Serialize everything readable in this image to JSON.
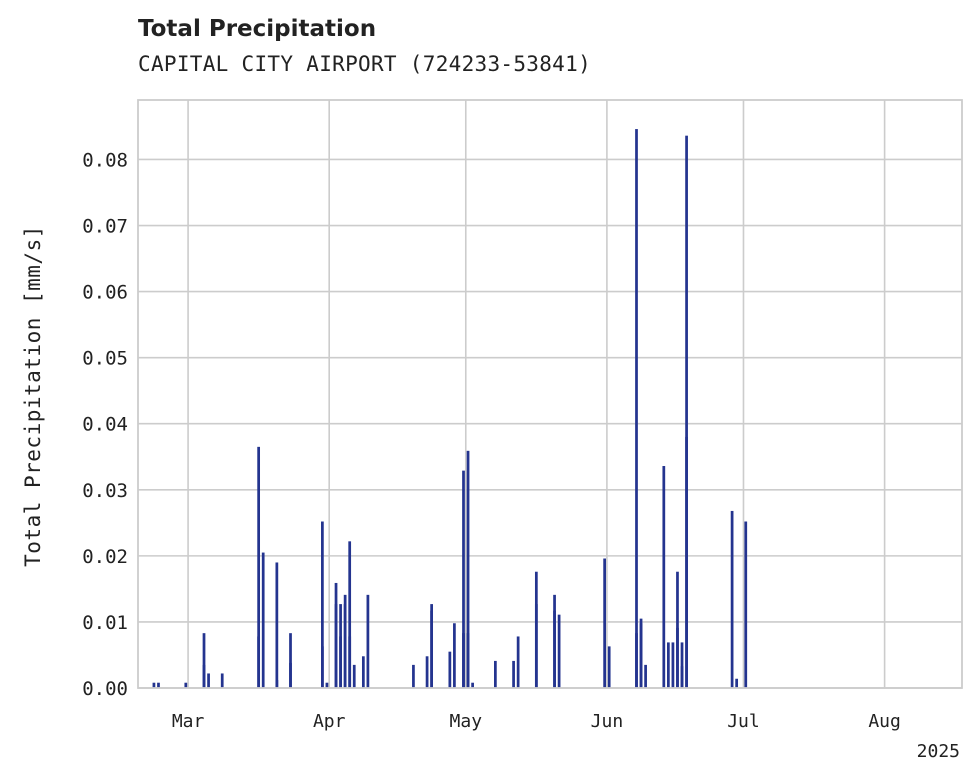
{
  "chart_data": {
    "type": "bar",
    "title": "Total Precipitation",
    "subtitle": "CAPITAL CITY AIRPORT (724233-53841)",
    "ylabel": "Total Precipitation [mm/s]",
    "xlabel": "",
    "x_axis_year": "2025",
    "x_ticks": [
      "2025-03-01",
      "2025-04-01",
      "2025-05-01",
      "2025-06-01",
      "2025-07-01",
      "2025-08-01"
    ],
    "x_tick_labels": [
      "Mar",
      "Apr",
      "May",
      "Jun",
      "Jul",
      "Aug"
    ],
    "xlim": [
      "2025-02-18",
      "2025-08-18"
    ],
    "ylim": [
      0,
      0.089
    ],
    "y_ticks": [
      0.0,
      0.01,
      0.02,
      0.03,
      0.04,
      0.05,
      0.06,
      0.07,
      0.08
    ],
    "y_tick_labels": [
      "0.00",
      "0.01",
      "0.02",
      "0.03",
      "0.04",
      "0.05",
      "0.06",
      "0.07",
      "0.08"
    ],
    "grid": true,
    "bar_color": "#24348f",
    "series": [
      {
        "x": [
          "2025-02-21",
          "2025-02-22",
          "2025-02-28",
          "2025-03-04",
          "2025-03-04",
          "2025-03-05",
          "2025-03-08",
          "2025-03-16",
          "2025-03-16",
          "2025-03-17",
          "2025-03-20",
          "2025-03-20",
          "2025-03-23",
          "2025-03-23",
          "2025-03-24",
          "2025-03-30",
          "2025-03-30",
          "2025-03-31",
          "2025-04-02",
          "2025-04-02",
          "2025-04-03",
          "2025-04-03",
          "2025-04-04",
          "2025-04-04",
          "2025-04-05",
          "2025-04-05",
          "2025-04-06",
          "2025-04-08",
          "2025-04-09",
          "2025-04-19",
          "2025-04-22",
          "2025-04-23",
          "2025-04-23",
          "2025-04-27",
          "2025-04-28",
          "2025-04-30",
          "2025-04-30",
          "2025-05-01",
          "2025-05-01",
          "2025-05-02",
          "2025-05-07",
          "2025-05-11",
          "2025-05-12",
          "2025-05-16",
          "2025-05-16",
          "2025-05-20",
          "2025-05-20",
          "2025-05-21",
          "2025-05-31",
          "2025-06-01",
          "2025-06-07",
          "2025-06-07",
          "2025-06-08",
          "2025-06-08",
          "2025-06-09",
          "2025-06-10",
          "2025-06-13",
          "2025-06-14",
          "2025-06-15",
          "2025-06-16",
          "2025-06-16",
          "2025-06-17",
          "2025-06-17",
          "2025-06-18",
          "2025-06-18",
          "2025-06-19",
          "2025-06-28",
          "2025-06-29",
          "2025-07-01"
        ],
        "values": [
          0.0008,
          0.0008,
          0.0008,
          0.0035,
          0.0083,
          0.0022,
          0.0022,
          0.0078,
          0.0365,
          0.0205,
          0.019,
          0.0012,
          0.0038,
          0.0083,
          0.0,
          0.0063,
          0.0252,
          0.0008,
          0.0127,
          0.0159,
          0.0127,
          0.0078,
          0.0127,
          0.0141,
          0.0222,
          0.0078,
          0.0035,
          0.0048,
          0.0141,
          0.0035,
          0.0048,
          0.0127,
          0.0117,
          0.0055,
          0.0098,
          0.0329,
          0.0083,
          0.0359,
          0.0083,
          0.0008,
          0.0041,
          0.0041,
          0.0078,
          0.0127,
          0.0176,
          0.0141,
          0.0117,
          0.0111,
          0.0196,
          0.0063,
          0.0083,
          0.0846,
          0.0098,
          0.0105,
          0.0035,
          0.0,
          0.0336,
          0.0069,
          0.0069,
          0.0091,
          0.0176,
          0.0069,
          0.0033,
          0.0836,
          0.038,
          0.0,
          0.0268,
          0.0014,
          0.0252
        ]
      }
    ]
  }
}
